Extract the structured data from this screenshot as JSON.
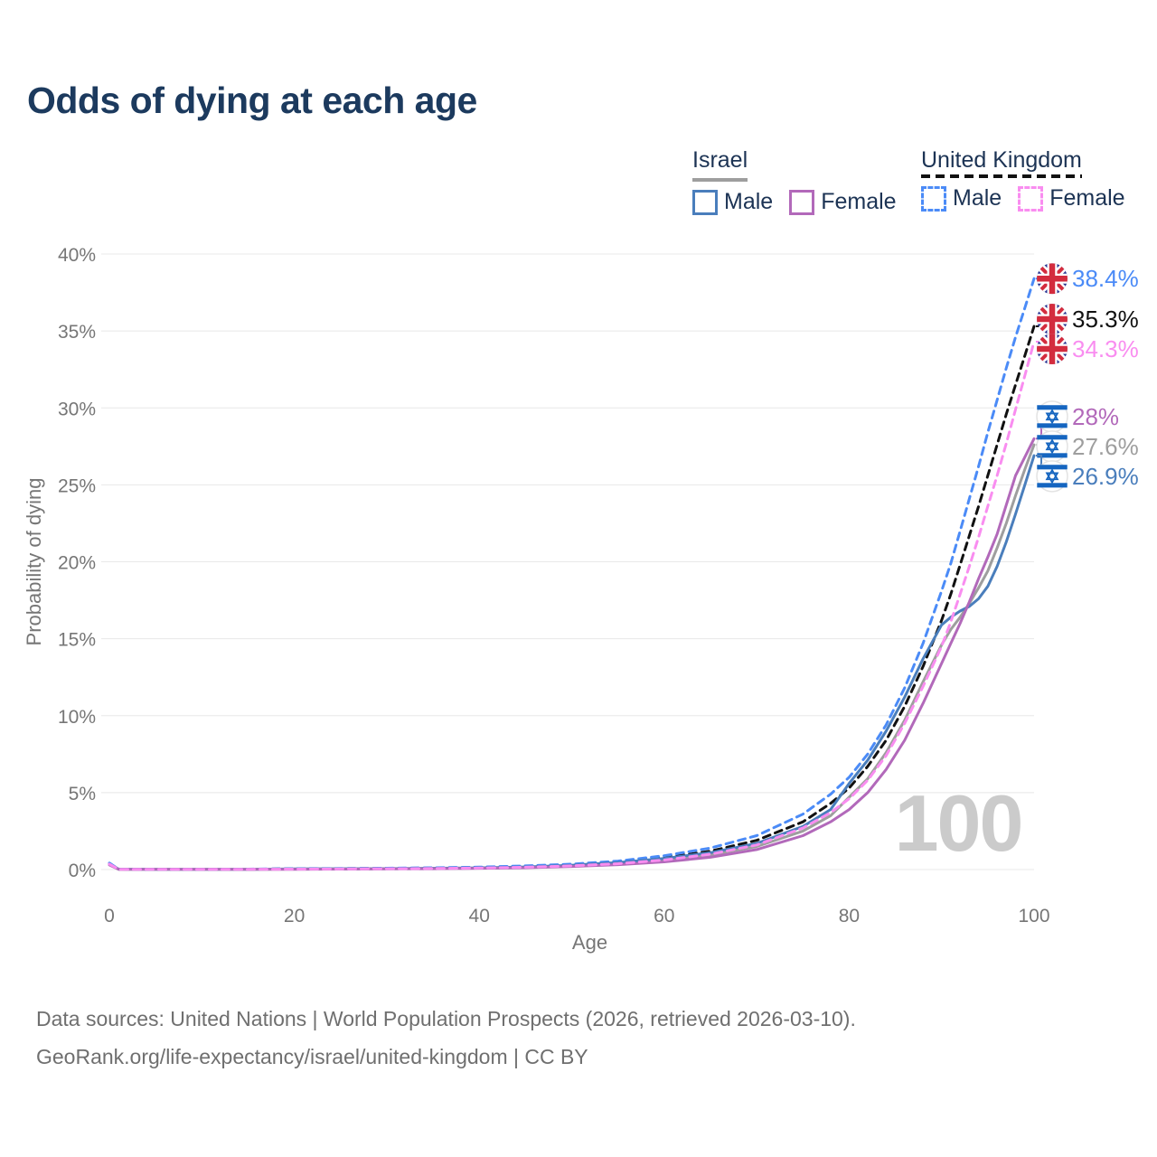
{
  "title": "Odds of dying at each age",
  "legend": {
    "israel": {
      "label": "Israel",
      "male": "Male",
      "female": "Female"
    },
    "uk": {
      "label": "United Kingdom",
      "male": "Male",
      "female": "Female"
    }
  },
  "watermark": "100",
  "footer": {
    "line1": "Data sources: United Nations | World Population Prospects (2026, retrieved 2026-03-10).",
    "line2": "GeoRank.org/life-expectancy/israel/united-kingdom | CC BY"
  },
  "colors": {
    "title": "#1c3a5e",
    "axis_text": "#767676",
    "gridline": "#e8e8e8",
    "watermark": "#cbcbcb",
    "footer": "#6f6f6f",
    "israel_male": "#4a7ebc",
    "israel_female": "#b269ba",
    "israel_both": "#9e9e9e",
    "uk_male": "#4b8bf7",
    "uk_both": "#111111",
    "uk_female": "#f98df0",
    "flag_uk_blue": "#283593",
    "flag_uk_red": "#d32c3e",
    "flag_israel_blue": "#1565c0"
  },
  "chart_data": {
    "type": "line",
    "title": "Odds of dying at each age",
    "xlabel": "Age",
    "ylabel": "Probability of dying",
    "xlim": [
      0,
      100
    ],
    "ylim": [
      0,
      40
    ],
    "grid": true,
    "legend_position": "top-right",
    "x_ticks": [
      0,
      20,
      40,
      60,
      80,
      100
    ],
    "x_tick_labels": [
      "0",
      "20",
      "40",
      "60",
      "80",
      "100"
    ],
    "y_ticks": [
      0,
      5,
      10,
      15,
      20,
      25,
      30,
      35,
      40
    ],
    "y_tick_labels": [
      "0%",
      "5%",
      "10%",
      "15%",
      "20%",
      "25%",
      "30%",
      "35%",
      "40%"
    ],
    "x": [
      0,
      1,
      5,
      10,
      15,
      20,
      25,
      30,
      35,
      40,
      45,
      50,
      55,
      60,
      65,
      70,
      75,
      78,
      80,
      82,
      84,
      86,
      88,
      90,
      91,
      92,
      93,
      94,
      95,
      96,
      97,
      98,
      99,
      100
    ],
    "series": [
      {
        "id": "israel_both",
        "name": "Israel",
        "country": "Israel",
        "sex": "Both",
        "style": "solid",
        "color": "#9e9e9e",
        "values": [
          0.33,
          0.02,
          0.01,
          0.01,
          0.02,
          0.03,
          0.04,
          0.05,
          0.07,
          0.09,
          0.14,
          0.24,
          0.38,
          0.61,
          0.95,
          1.5,
          2.5,
          3.5,
          4.7,
          5.9,
          7.6,
          9.7,
          12.2,
          14.6,
          15.6,
          16.4,
          17.3,
          18.3,
          19.4,
          20.9,
          22.5,
          24.3,
          26.0,
          27.6
        ]
      },
      {
        "id": "uk_both",
        "name": "United Kingdom",
        "country": "United Kingdom",
        "sex": "Both",
        "style": "dashed",
        "color": "#111111",
        "values": [
          0.39,
          0.03,
          0.01,
          0.01,
          0.02,
          0.05,
          0.06,
          0.08,
          0.1,
          0.14,
          0.2,
          0.3,
          0.47,
          0.77,
          1.2,
          1.9,
          3.1,
          4.3,
          5.3,
          6.7,
          8.4,
          10.6,
          13.2,
          16.2,
          17.9,
          19.8,
          21.7,
          23.6,
          25.6,
          27.6,
          29.6,
          31.5,
          33.4,
          35.3
        ]
      },
      {
        "id": "uk_male",
        "name": "United Kingdom Male",
        "country": "United Kingdom",
        "sex": "Male",
        "style": "dashed",
        "color": "#4b8bf7",
        "values": [
          0.42,
          0.03,
          0.01,
          0.01,
          0.03,
          0.06,
          0.07,
          0.09,
          0.12,
          0.16,
          0.24,
          0.35,
          0.55,
          0.9,
          1.4,
          2.2,
          3.6,
          4.9,
          6.0,
          7.5,
          9.4,
          11.8,
          14.7,
          18.1,
          19.9,
          22.0,
          24.1,
          26.2,
          28.4,
          30.5,
          32.6,
          34.6,
          36.5,
          38.4
        ]
      },
      {
        "id": "israel_male",
        "name": "Israel Male",
        "country": "Israel",
        "sex": "Male",
        "style": "solid",
        "color": "#4a7ebc",
        "values": [
          0.35,
          0.03,
          0.01,
          0.01,
          0.02,
          0.04,
          0.05,
          0.06,
          0.08,
          0.11,
          0.17,
          0.28,
          0.45,
          0.72,
          1.1,
          1.7,
          2.8,
          3.9,
          5.6,
          7.1,
          9.0,
          11.2,
          13.7,
          15.9,
          16.4,
          16.8,
          17.1,
          17.6,
          18.4,
          19.7,
          21.3,
          23.1,
          25.0,
          26.9
        ]
      },
      {
        "id": "israel_female",
        "name": "Israel Female",
        "country": "Israel",
        "sex": "Female",
        "style": "solid",
        "color": "#b269ba",
        "values": [
          0.3,
          0.02,
          0.01,
          0.01,
          0.01,
          0.02,
          0.03,
          0.04,
          0.05,
          0.08,
          0.12,
          0.2,
          0.32,
          0.5,
          0.8,
          1.3,
          2.2,
          3.1,
          3.9,
          5.0,
          6.5,
          8.4,
          10.8,
          13.4,
          14.7,
          16.0,
          17.4,
          18.9,
          20.3,
          21.8,
          23.7,
          25.6,
          26.8,
          28.0
        ]
      },
      {
        "id": "uk_female",
        "name": "United Kingdom Female",
        "country": "United Kingdom",
        "sex": "Female",
        "style": "dashed",
        "color": "#f98df0",
        "values": [
          0.36,
          0.02,
          0.01,
          0.01,
          0.02,
          0.03,
          0.04,
          0.05,
          0.07,
          0.1,
          0.15,
          0.24,
          0.38,
          0.62,
          1.0,
          1.6,
          2.7,
          3.7,
          4.6,
          5.8,
          7.4,
          9.5,
          11.9,
          14.5,
          16.1,
          17.9,
          19.7,
          21.6,
          23.6,
          25.6,
          27.7,
          29.9,
          32.1,
          34.3
        ]
      }
    ],
    "end_labels": [
      {
        "series": "uk_male",
        "label": "38.4%",
        "value": 38.4,
        "flag": "uk",
        "color": "#4b8bf7",
        "dashed": true
      },
      {
        "series": "uk_both",
        "label": "35.3%",
        "value": 35.3,
        "flag": "uk",
        "color": "#111111",
        "dashed": true
      },
      {
        "series": "uk_female",
        "label": "34.3%",
        "value": 34.3,
        "flag": "uk",
        "color": "#f98df0",
        "dashed": true
      },
      {
        "series": "israel_female",
        "label": "28%",
        "value": 28.0,
        "flag": "israel",
        "color": "#b269ba",
        "dashed": false
      },
      {
        "series": "israel_both",
        "label": "27.6%",
        "value": 27.6,
        "flag": "israel",
        "color": "#9e9e9e",
        "dashed": false
      },
      {
        "series": "israel_male",
        "label": "26.9%",
        "value": 26.9,
        "flag": "israel",
        "color": "#4a7ebc",
        "dashed": false
      }
    ]
  }
}
